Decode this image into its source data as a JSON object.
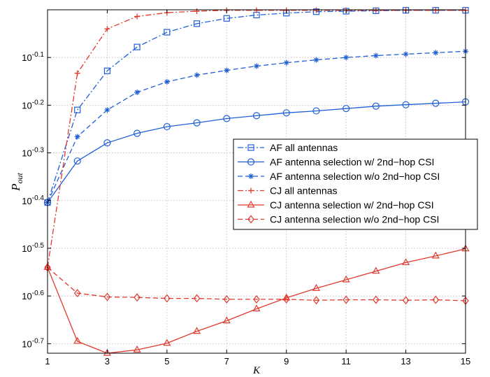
{
  "chart_data": {
    "type": "line",
    "title": "",
    "xlabel": "K",
    "ylabel": "P_out",
    "ylabel_main": "P",
    "ylabel_sub": "out",
    "xlim": [
      1,
      15
    ],
    "ylim": [
      -0.72,
      0
    ],
    "y_scale": "log10",
    "grid": true,
    "legend_position": "center-right",
    "x_ticks": [
      1,
      3,
      5,
      7,
      9,
      11,
      13,
      15
    ],
    "x_tick_labels": [
      "1",
      "3",
      "5",
      "7",
      "9",
      "11",
      "13",
      "15"
    ],
    "y_ticks": [
      -0.1,
      -0.2,
      -0.3,
      -0.4,
      -0.5,
      -0.6,
      -0.7
    ],
    "y_tick_labels": [
      {
        "base": "10",
        "exp": "-0.1"
      },
      {
        "base": "10",
        "exp": "-0.2"
      },
      {
        "base": "10",
        "exp": "-0.3"
      },
      {
        "base": "10",
        "exp": "-0.4"
      },
      {
        "base": "10",
        "exp": "-0.5"
      },
      {
        "base": "10",
        "exp": "-0.6"
      },
      {
        "base": "10",
        "exp": "-0.7"
      }
    ],
    "x": [
      1,
      2,
      3,
      4,
      5,
      6,
      7,
      8,
      9,
      10,
      11,
      12,
      13,
      14,
      15
    ],
    "series": [
      {
        "name": "AF all antennas",
        "color": "#1f5fd6",
        "line_style": "dashdot",
        "marker": "square",
        "values_log10": [
          -0.404,
          -0.21,
          -0.128,
          -0.078,
          -0.047,
          -0.029,
          -0.018,
          -0.011,
          -0.007,
          -0.004,
          -0.003,
          -0.002,
          -0.001,
          -0.001,
          -0.001
        ]
      },
      {
        "name": "AF antenna selection w/ 2nd−hop CSI",
        "color": "#1f5fd6",
        "line_style": "solid",
        "marker": "circle",
        "values_log10": [
          -0.404,
          -0.317,
          -0.279,
          -0.259,
          -0.245,
          -0.237,
          -0.228,
          -0.222,
          -0.216,
          -0.212,
          -0.207,
          -0.202,
          -0.199,
          -0.196,
          -0.193
        ]
      },
      {
        "name": "AF antenna selection w/o 2nd−hop CSI",
        "color": "#1f5fd6",
        "line_style": "dashed",
        "marker": "asterisk",
        "values_log10": [
          -0.404,
          -0.266,
          -0.21,
          -0.173,
          -0.151,
          -0.137,
          -0.127,
          -0.118,
          -0.111,
          -0.105,
          -0.1,
          -0.096,
          -0.093,
          -0.09,
          -0.087
        ]
      },
      {
        "name": "CJ all antennas",
        "color": "#e03a2f",
        "line_style": "dashdot",
        "marker": "plus",
        "values_log10": [
          -0.54,
          -0.133,
          -0.04,
          -0.014,
          -0.006,
          -0.003,
          -0.001,
          -0.001,
          -0.001,
          -0.001,
          -0.001,
          -0.001,
          -0.001,
          -0.001,
          -0.001
        ]
      },
      {
        "name": "CJ antenna selection w/ 2nd−hop CSI",
        "color": "#e03a2f",
        "line_style": "solid",
        "marker": "triangle",
        "values_log10": [
          -0.54,
          -0.695,
          -0.72,
          -0.713,
          -0.699,
          -0.674,
          -0.652,
          -0.627,
          -0.604,
          -0.584,
          -0.566,
          -0.548,
          -0.53,
          -0.516,
          -0.501
        ]
      },
      {
        "name": "CJ antenna selection w/o 2nd−hop CSI",
        "color": "#e03a2f",
        "line_style": "dashed",
        "marker": "diamond",
        "values_log10": [
          -0.54,
          -0.594,
          -0.602,
          -0.603,
          -0.605,
          -0.605,
          -0.607,
          -0.607,
          -0.607,
          -0.609,
          -0.608,
          -0.608,
          -0.609,
          -0.608,
          -0.61
        ]
      }
    ]
  }
}
